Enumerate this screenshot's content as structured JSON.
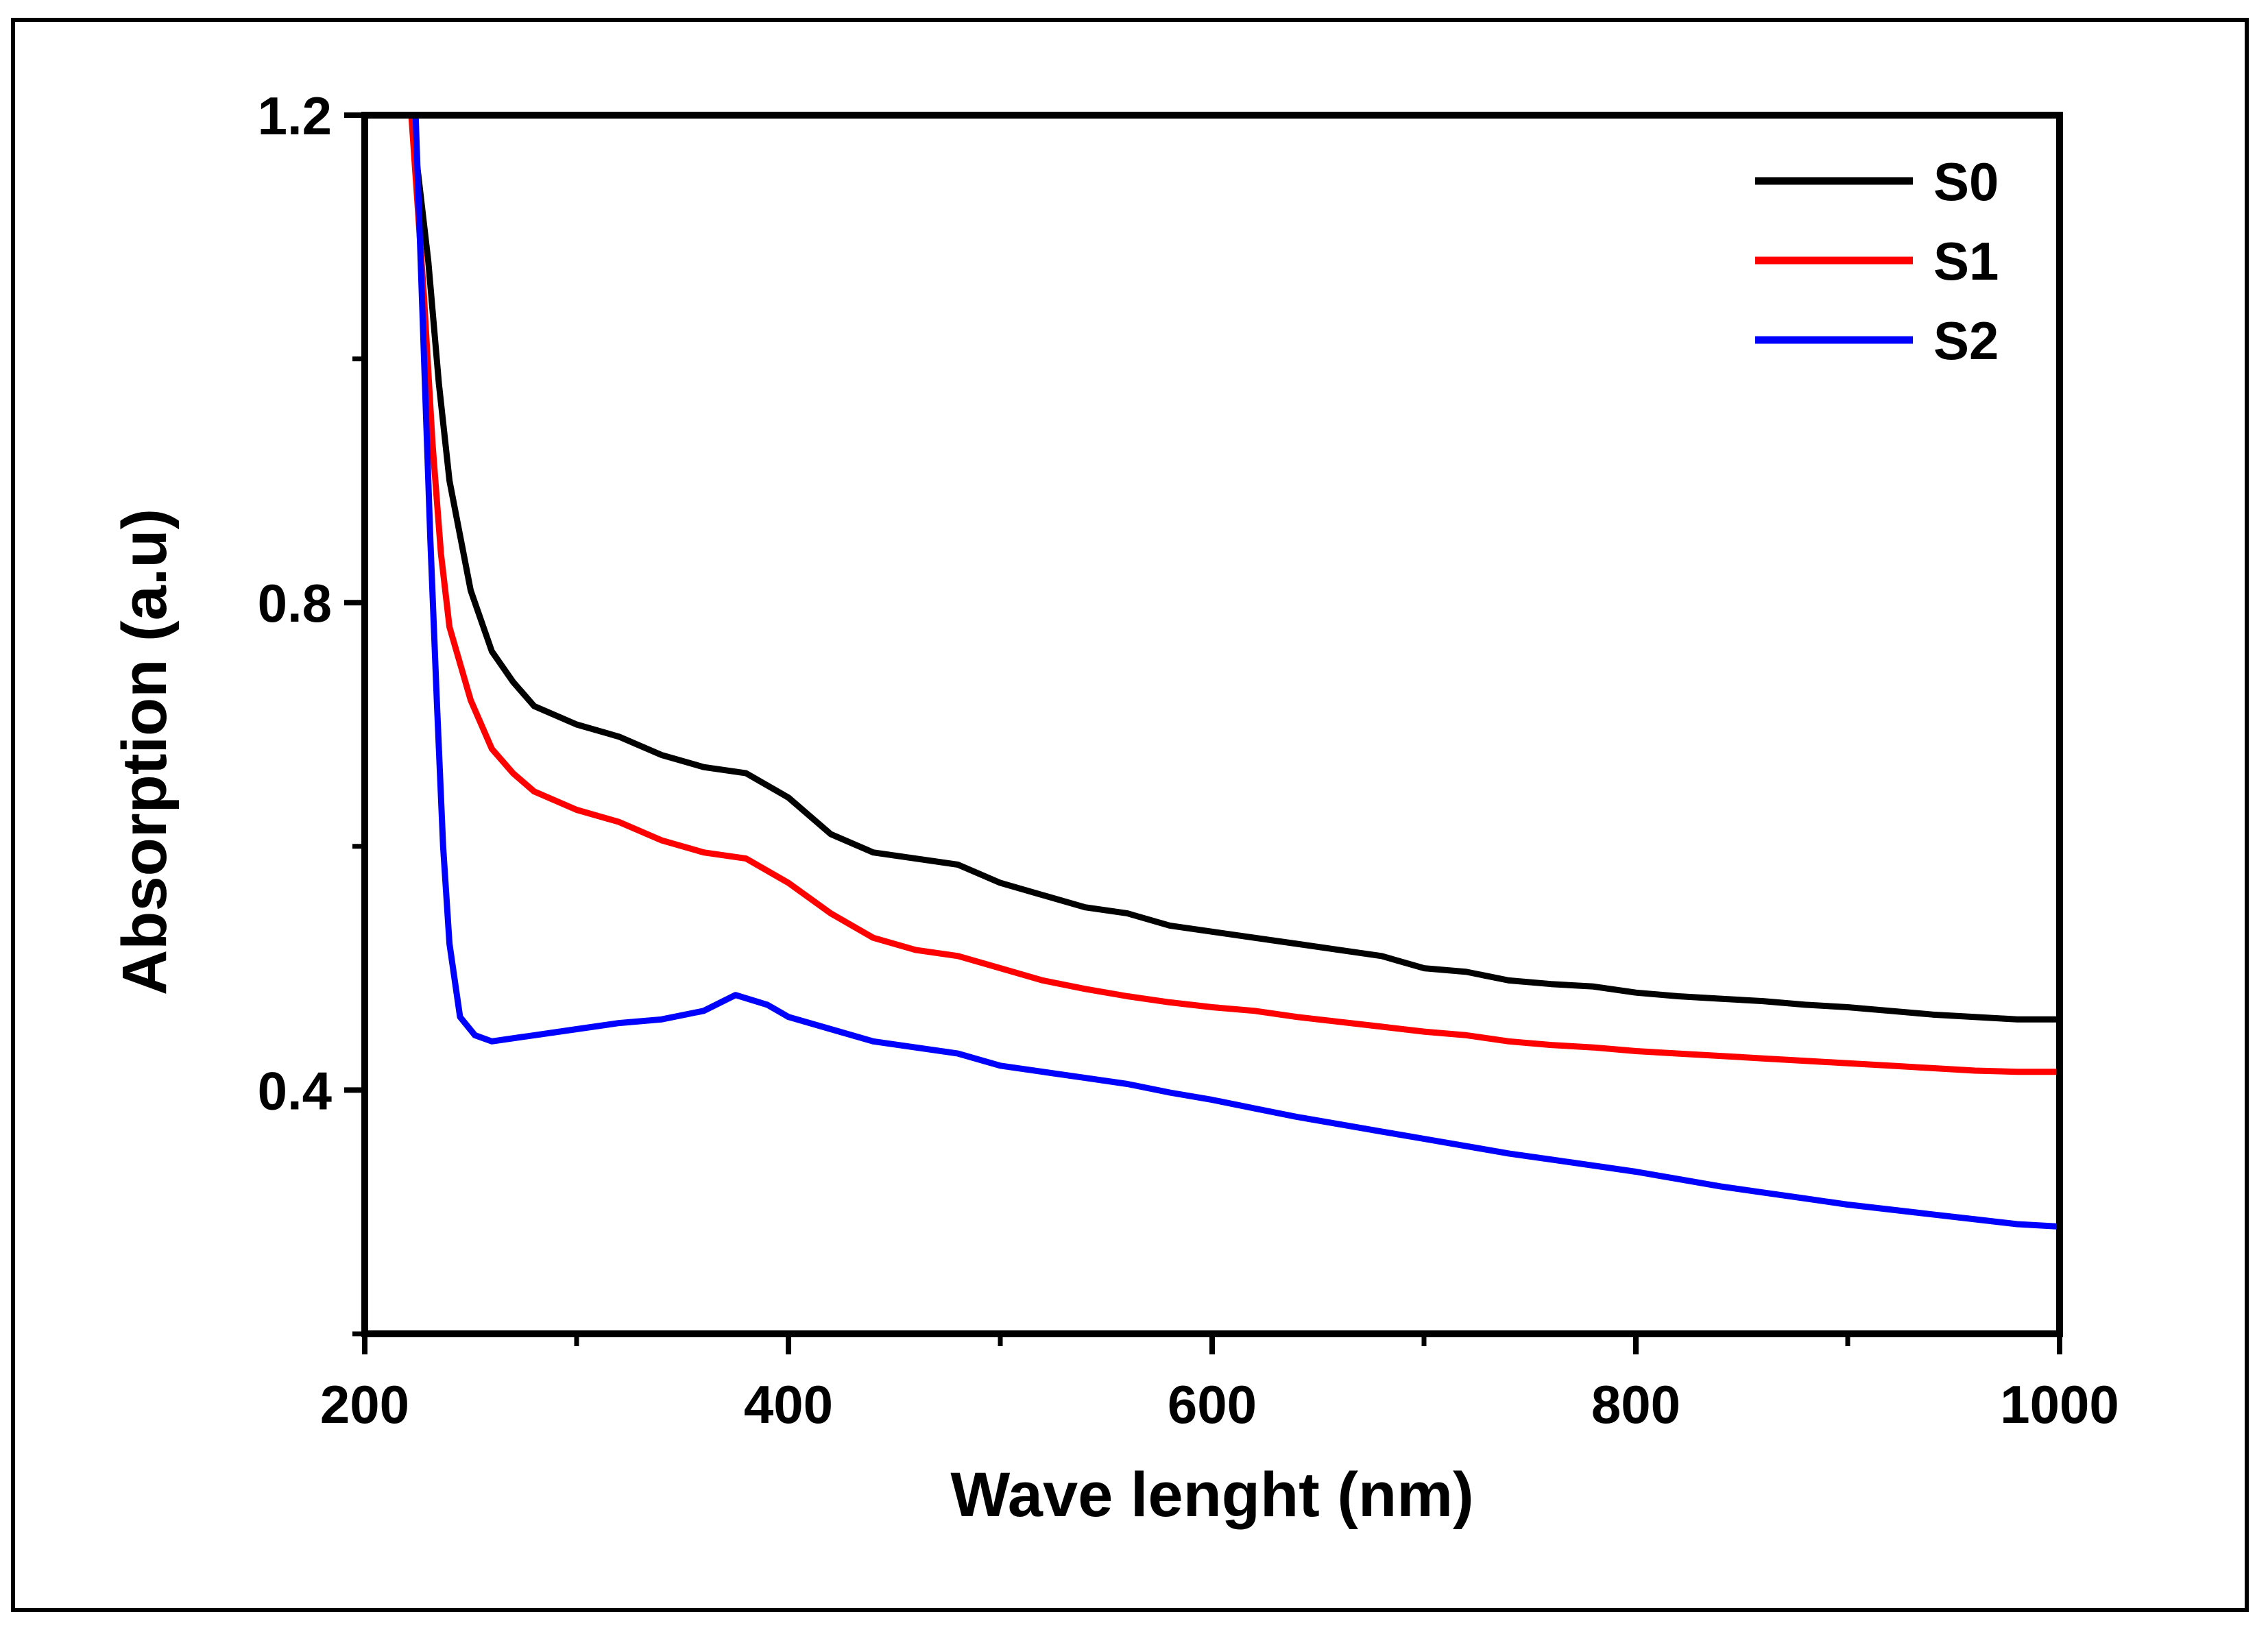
{
  "chart_data": {
    "type": "line",
    "title": "",
    "xlabel": "Wave lenght (nm)",
    "ylabel": "Absorption (a.u)",
    "xlim": [
      200,
      1000
    ],
    "ylim": [
      0.2,
      1.2
    ],
    "x_ticks": [
      200,
      400,
      600,
      800,
      1000
    ],
    "x_tick_labels": [
      "200",
      "400",
      "600",
      "800",
      "1000"
    ],
    "x_minor_ticks": [
      300,
      500,
      700,
      900
    ],
    "y_ticks": [
      0.4,
      0.8,
      1.2
    ],
    "y_tick_labels": [
      "0.4",
      "0.8",
      "1.2"
    ],
    "y_minor_ticks": [
      0.2,
      0.6,
      1.0
    ],
    "legend_position": "top-right",
    "series": [
      {
        "name": "S0",
        "color": "#000000",
        "points": [
          [
            222,
            1.2
          ],
          [
            230,
            1.08
          ],
          [
            235,
            0.98
          ],
          [
            240,
            0.9
          ],
          [
            250,
            0.81
          ],
          [
            260,
            0.76
          ],
          [
            270,
            0.735
          ],
          [
            280,
            0.715
          ],
          [
            300,
            0.7
          ],
          [
            320,
            0.69
          ],
          [
            340,
            0.675
          ],
          [
            360,
            0.665
          ],
          [
            380,
            0.66
          ],
          [
            400,
            0.64
          ],
          [
            420,
            0.61
          ],
          [
            440,
            0.595
          ],
          [
            460,
            0.59
          ],
          [
            480,
            0.585
          ],
          [
            500,
            0.57
          ],
          [
            520,
            0.56
          ],
          [
            540,
            0.55
          ],
          [
            560,
            0.545
          ],
          [
            580,
            0.535
          ],
          [
            600,
            0.53
          ],
          [
            620,
            0.525
          ],
          [
            640,
            0.52
          ],
          [
            660,
            0.515
          ],
          [
            680,
            0.51
          ],
          [
            700,
            0.5
          ],
          [
            720,
            0.497
          ],
          [
            740,
            0.49
          ],
          [
            760,
            0.487
          ],
          [
            780,
            0.485
          ],
          [
            800,
            0.48
          ],
          [
            820,
            0.477
          ],
          [
            840,
            0.475
          ],
          [
            860,
            0.473
          ],
          [
            880,
            0.47
          ],
          [
            900,
            0.468
          ],
          [
            920,
            0.465
          ],
          [
            940,
            0.462
          ],
          [
            960,
            0.46
          ],
          [
            980,
            0.458
          ],
          [
            1000,
            0.458
          ]
        ]
      },
      {
        "name": "S1",
        "color": "#ff0000",
        "points": [
          [
            222,
            1.2
          ],
          [
            228,
            1.05
          ],
          [
            232,
            0.93
          ],
          [
            236,
            0.84
          ],
          [
            240,
            0.78
          ],
          [
            250,
            0.72
          ],
          [
            260,
            0.68
          ],
          [
            270,
            0.66
          ],
          [
            280,
            0.645
          ],
          [
            300,
            0.63
          ],
          [
            320,
            0.62
          ],
          [
            340,
            0.605
          ],
          [
            360,
            0.595
          ],
          [
            380,
            0.59
          ],
          [
            400,
            0.57
          ],
          [
            420,
            0.545
          ],
          [
            440,
            0.525
          ],
          [
            460,
            0.515
          ],
          [
            480,
            0.51
          ],
          [
            500,
            0.5
          ],
          [
            520,
            0.49
          ],
          [
            540,
            0.483
          ],
          [
            560,
            0.477
          ],
          [
            580,
            0.472
          ],
          [
            600,
            0.468
          ],
          [
            620,
            0.465
          ],
          [
            640,
            0.46
          ],
          [
            660,
            0.456
          ],
          [
            680,
            0.452
          ],
          [
            700,
            0.448
          ],
          [
            720,
            0.445
          ],
          [
            740,
            0.44
          ],
          [
            760,
            0.437
          ],
          [
            780,
            0.435
          ],
          [
            800,
            0.432
          ],
          [
            820,
            0.43
          ],
          [
            840,
            0.428
          ],
          [
            860,
            0.426
          ],
          [
            880,
            0.424
          ],
          [
            900,
            0.422
          ],
          [
            920,
            0.42
          ],
          [
            940,
            0.418
          ],
          [
            960,
            0.416
          ],
          [
            980,
            0.415
          ],
          [
            1000,
            0.415
          ]
        ]
      },
      {
        "name": "S2",
        "color": "#0000ff",
        "points": [
          [
            224,
            1.2
          ],
          [
            228,
            1.0
          ],
          [
            231,
            0.85
          ],
          [
            234,
            0.72
          ],
          [
            237,
            0.6
          ],
          [
            240,
            0.52
          ],
          [
            245,
            0.46
          ],
          [
            252,
            0.445
          ],
          [
            260,
            0.44
          ],
          [
            280,
            0.445
          ],
          [
            300,
            0.45
          ],
          [
            320,
            0.455
          ],
          [
            340,
            0.458
          ],
          [
            360,
            0.465
          ],
          [
            375,
            0.478
          ],
          [
            390,
            0.47
          ],
          [
            400,
            0.46
          ],
          [
            420,
            0.45
          ],
          [
            440,
            0.44
          ],
          [
            460,
            0.435
          ],
          [
            480,
            0.43
          ],
          [
            500,
            0.42
          ],
          [
            520,
            0.415
          ],
          [
            540,
            0.41
          ],
          [
            560,
            0.405
          ],
          [
            580,
            0.398
          ],
          [
            600,
            0.392
          ],
          [
            620,
            0.385
          ],
          [
            640,
            0.378
          ],
          [
            660,
            0.372
          ],
          [
            680,
            0.366
          ],
          [
            700,
            0.36
          ],
          [
            720,
            0.354
          ],
          [
            740,
            0.348
          ],
          [
            760,
            0.343
          ],
          [
            780,
            0.338
          ],
          [
            800,
            0.333
          ],
          [
            820,
            0.327
          ],
          [
            840,
            0.321
          ],
          [
            860,
            0.316
          ],
          [
            880,
            0.311
          ],
          [
            900,
            0.306
          ],
          [
            920,
            0.302
          ],
          [
            940,
            0.298
          ],
          [
            960,
            0.294
          ],
          [
            980,
            0.29
          ],
          [
            1000,
            0.288
          ]
        ]
      }
    ]
  }
}
